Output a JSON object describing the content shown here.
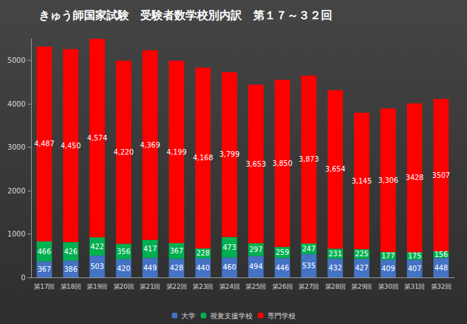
{
  "chart_data": {
    "type": "bar",
    "title": "きゅう師国家試験　受験者数学校別内訳　第１７～３２回",
    "categories": [
      "第17回",
      "第18回",
      "第19回",
      "第20回",
      "第21回",
      "第22回",
      "第23回",
      "第24回",
      "第25回",
      "第26回",
      "第27回",
      "第28回",
      "第29回",
      "第30回",
      "第31回",
      "第32回"
    ],
    "series": [
      {
        "name": "大学",
        "color": "#4472c4",
        "values": [
          367,
          386,
          503,
          420,
          449,
          428,
          440,
          460,
          494,
          446,
          535,
          432,
          427,
          409,
          407,
          448
        ]
      },
      {
        "name": "視覚支援学校",
        "color": "#00b050",
        "values": [
          466,
          426,
          422,
          356,
          417,
          367,
          228,
          473,
          297,
          259,
          247,
          231,
          225,
          177,
          175,
          156
        ]
      },
      {
        "name": "専門学校",
        "color": "#ff0000",
        "values": [
          4487,
          4450,
          4574,
          4220,
          4369,
          4199,
          4168,
          3799,
          3653,
          3850,
          3873,
          3654,
          3145,
          3306,
          3428,
          3507
        ],
        "value_labels": [
          "4,487",
          "4,450",
          "4,574",
          "4,220",
          "4,369",
          "4,199",
          "4,168",
          "3,799",
          "3,653",
          "3,850",
          "3,873",
          "3,654",
          "3,145",
          "3,306",
          "3428",
          "3507"
        ]
      }
    ],
    "ylim": [
      0,
      5500
    ],
    "yticks": [
      0,
      1000,
      2000,
      3000,
      4000,
      5000
    ],
    "stacked": true,
    "data_labels": true,
    "grid": false,
    "legend": "bottom"
  }
}
